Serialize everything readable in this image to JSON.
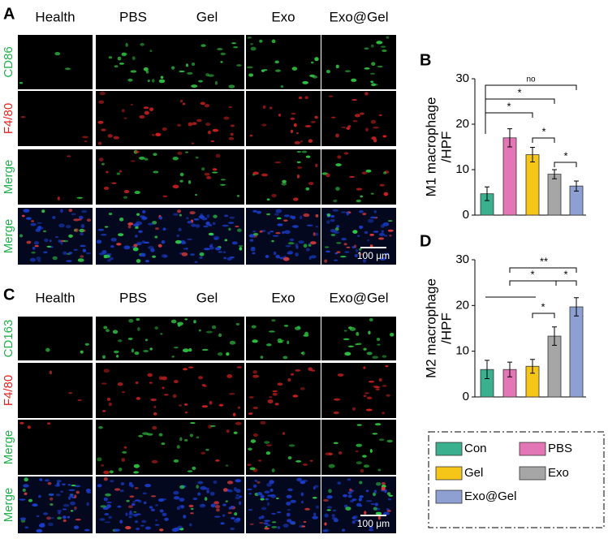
{
  "figure": {
    "panels": [
      {
        "label": "A",
        "columns": [
          "Health",
          "PBS",
          "Gel",
          "Exo",
          "Exo@Gel"
        ],
        "rows": [
          "CD86",
          "F4/80",
          "Merge",
          "Merge"
        ],
        "scale_bar": "100 μm"
      },
      {
        "label": "C",
        "columns": [
          "Health",
          "PBS",
          "Gel",
          "Exo",
          "Exo@Gel"
        ],
        "rows": [
          "CD163",
          "F4/80",
          "Merge",
          "Merge"
        ],
        "scale_bar": "100 μm"
      }
    ]
  },
  "chart_data": [
    {
      "type": "bar",
      "panel": "B",
      "ylabel": [
        "M1 macrophage",
        "/HPF"
      ],
      "categories": [
        "Con",
        "PBS",
        "Gel",
        "Exo",
        "Exo@Gel"
      ],
      "colors": [
        "#3bb08f",
        "#e377b5",
        "#f5c518",
        "#a6a6a6",
        "#8ea0d2"
      ],
      "values": [
        4.7,
        17,
        13.3,
        9,
        6.4
      ],
      "errors": [
        1.5,
        2,
        1.6,
        1,
        1.1
      ],
      "ylim": [
        0,
        30
      ],
      "yticks": [
        0,
        10,
        20,
        30
      ],
      "annotations": [
        "no",
        "*",
        "*",
        "*",
        "*"
      ]
    },
    {
      "type": "bar",
      "panel": "D",
      "ylabel": [
        "M2 macrophage",
        "/HPF"
      ],
      "categories": [
        "Con",
        "PBS",
        "Gel",
        "Exo",
        "Exo@Gel"
      ],
      "colors": [
        "#3bb08f",
        "#e377b5",
        "#f5c518",
        "#a6a6a6",
        "#8ea0d2"
      ],
      "values": [
        6,
        6,
        6.7,
        13.3,
        19.7
      ],
      "errors": [
        2,
        1.6,
        1.5,
        2,
        2
      ],
      "ylim": [
        0,
        30
      ],
      "yticks": [
        0,
        10,
        20,
        30
      ],
      "annotations": [
        "**",
        "*",
        "*",
        "*"
      ]
    }
  ]
}
